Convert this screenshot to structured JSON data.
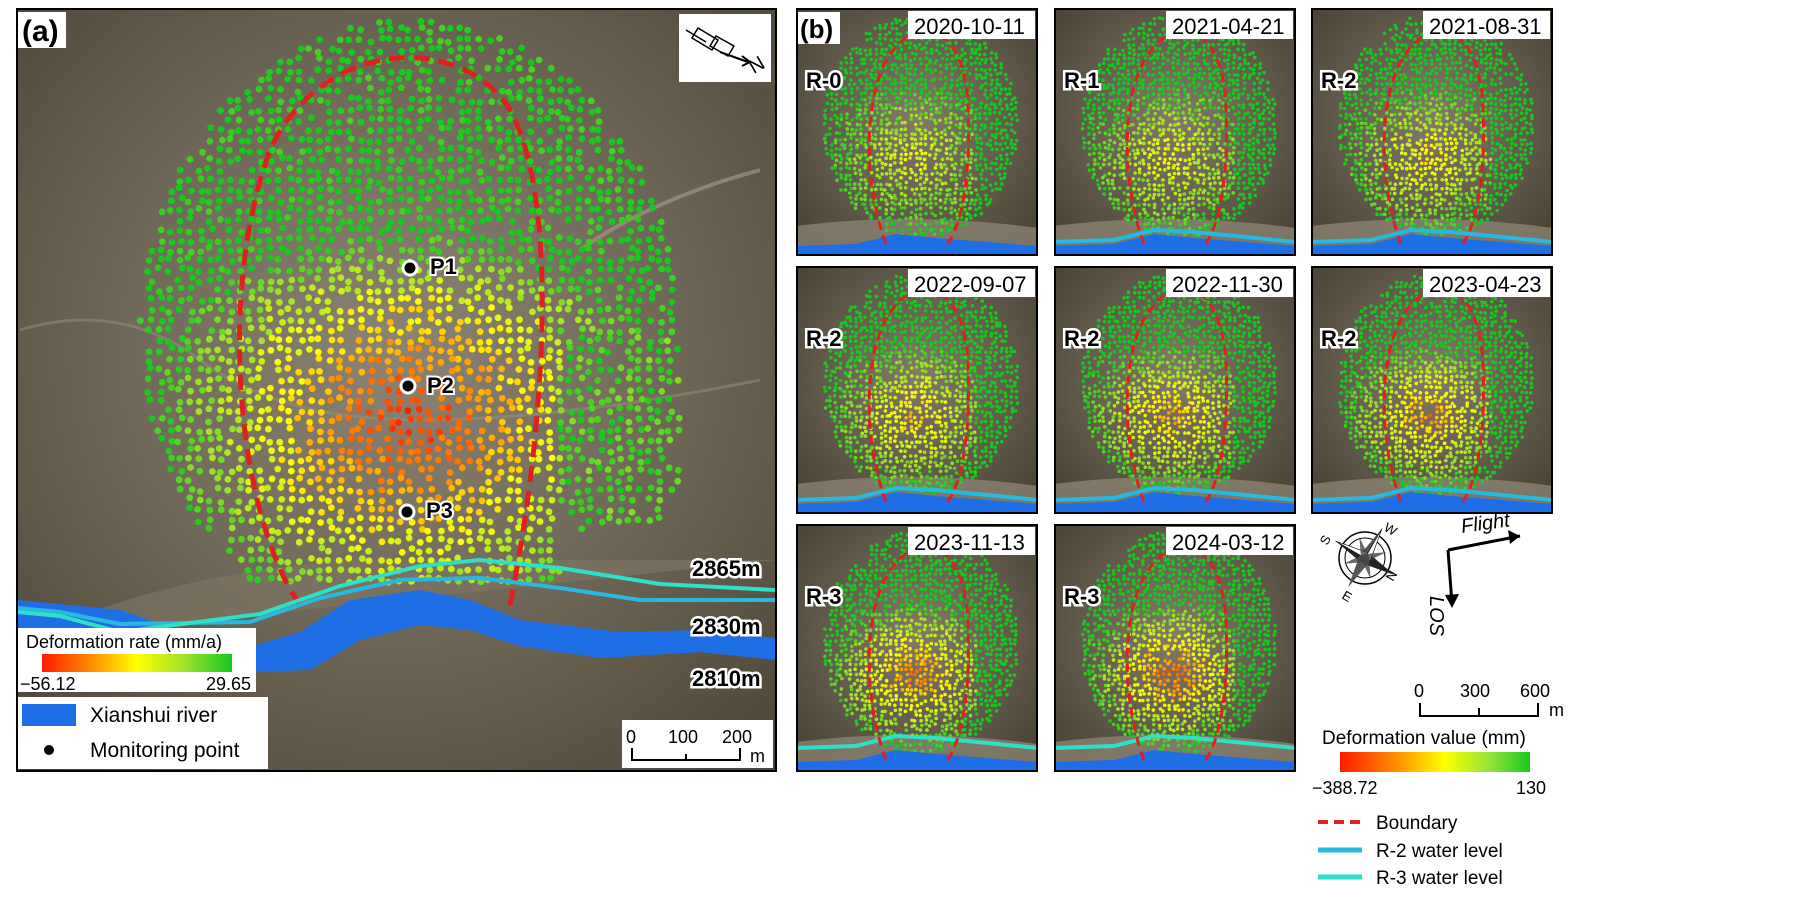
{
  "panel_a": {
    "label": "(a)",
    "points": [
      {
        "name": "P1"
      },
      {
        "name": "P2"
      },
      {
        "name": "P3"
      }
    ],
    "elevations": [
      "2865m",
      "2830m",
      "2810m"
    ],
    "colorbar": {
      "title": "Deformation rate (mm/a)",
      "min": "−56.12",
      "max": "29.65"
    },
    "legend": {
      "river": "Xianshui river",
      "point": "Monitoring point"
    },
    "scale": {
      "ticks": [
        "0",
        "100",
        "200"
      ],
      "unit": "m"
    }
  },
  "panel_b": {
    "label": "(b)",
    "tiles": [
      {
        "date": "2020-10-11",
        "stage": "R-0",
        "water": "none"
      },
      {
        "date": "2021-04-21",
        "stage": "R-1",
        "water": "r2"
      },
      {
        "date": "2021-08-31",
        "stage": "R-2",
        "water": "r2"
      },
      {
        "date": "2022-09-07",
        "stage": "R-2",
        "water": "r2"
      },
      {
        "date": "2022-11-30",
        "stage": "R-2",
        "water": "r2"
      },
      {
        "date": "2023-04-23",
        "stage": "R-2",
        "water": "r2"
      },
      {
        "date": "2023-11-13",
        "stage": "R-3",
        "water": "r3"
      },
      {
        "date": "2024-03-12",
        "stage": "R-3",
        "water": "r3"
      }
    ],
    "flight_label": "Flight",
    "los_label": "LOS",
    "compass": {
      "n": "N",
      "s": "S",
      "e": "E",
      "w": "W"
    },
    "scale": {
      "ticks": [
        "0",
        "300",
        "600"
      ],
      "unit": "m"
    },
    "colorbar": {
      "title": "Deformation value (mm)",
      "min": "−388.72",
      "max": "130"
    },
    "legend": {
      "boundary": "Boundary",
      "r2": "R-2 water level",
      "r3": "R-3 water level"
    }
  },
  "colors": {
    "river": "#1e6fe6",
    "r2_water": "#29b9e0",
    "r3_water": "#2fe0c8",
    "boundary": "#e02020",
    "deform_low": "#ff1a00",
    "deform_mid": "#ffff00",
    "deform_high": "#18c81e"
  }
}
